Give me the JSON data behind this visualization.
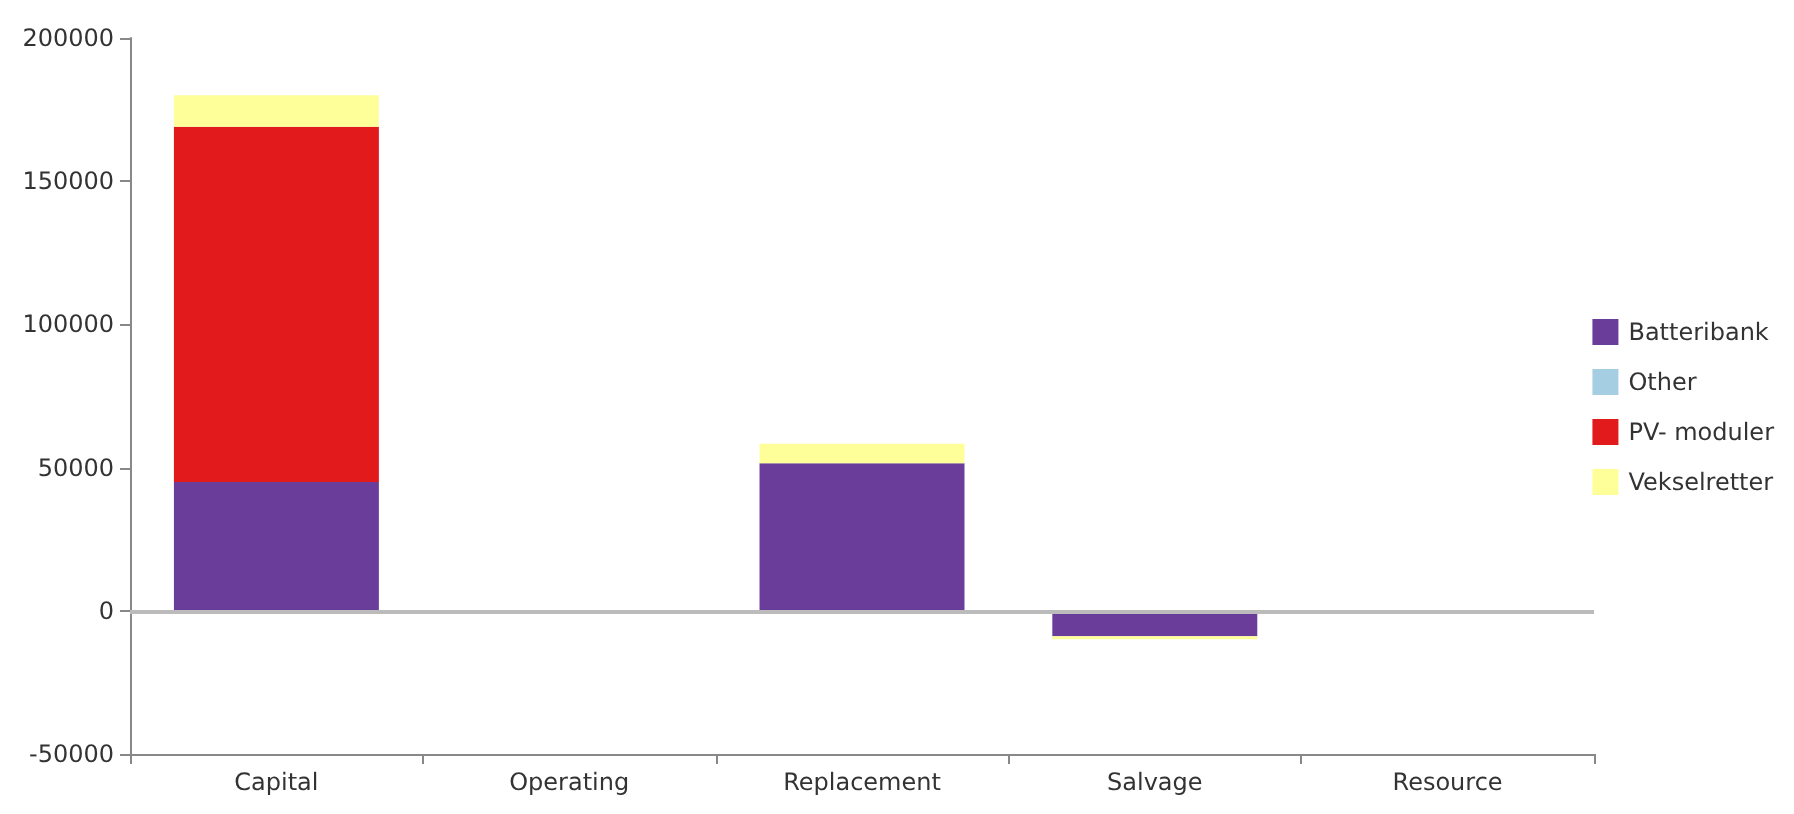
{
  "chart_data": {
    "type": "bar",
    "stacked": true,
    "categories": [
      "Capital",
      "Operating",
      "Replacement",
      "Salvage",
      "Resource"
    ],
    "series": [
      {
        "name": "Batteribank",
        "color": "#6a3d9a",
        "values": [
          45000,
          0,
          51500,
          -8900,
          0
        ]
      },
      {
        "name": "Other",
        "color": "#a6cee3",
        "values": [
          0,
          0,
          0,
          0,
          0
        ]
      },
      {
        "name": "PV- moduler",
        "color": "#e31a1c",
        "values": [
          124000,
          0,
          0,
          0,
          0
        ]
      },
      {
        "name": "Vekselretter",
        "color": "#ffff99",
        "values": [
          11000,
          0,
          6800,
          -1000,
          0
        ]
      }
    ],
    "ylim": [
      -50000,
      200000
    ],
    "yticks": [
      -50000,
      0,
      50000,
      100000,
      150000,
      200000
    ],
    "ref_lines": [
      {
        "axis": "y",
        "value": 0,
        "color": "#bbbbbb"
      }
    ],
    "grid": false,
    "legend": "right"
  }
}
